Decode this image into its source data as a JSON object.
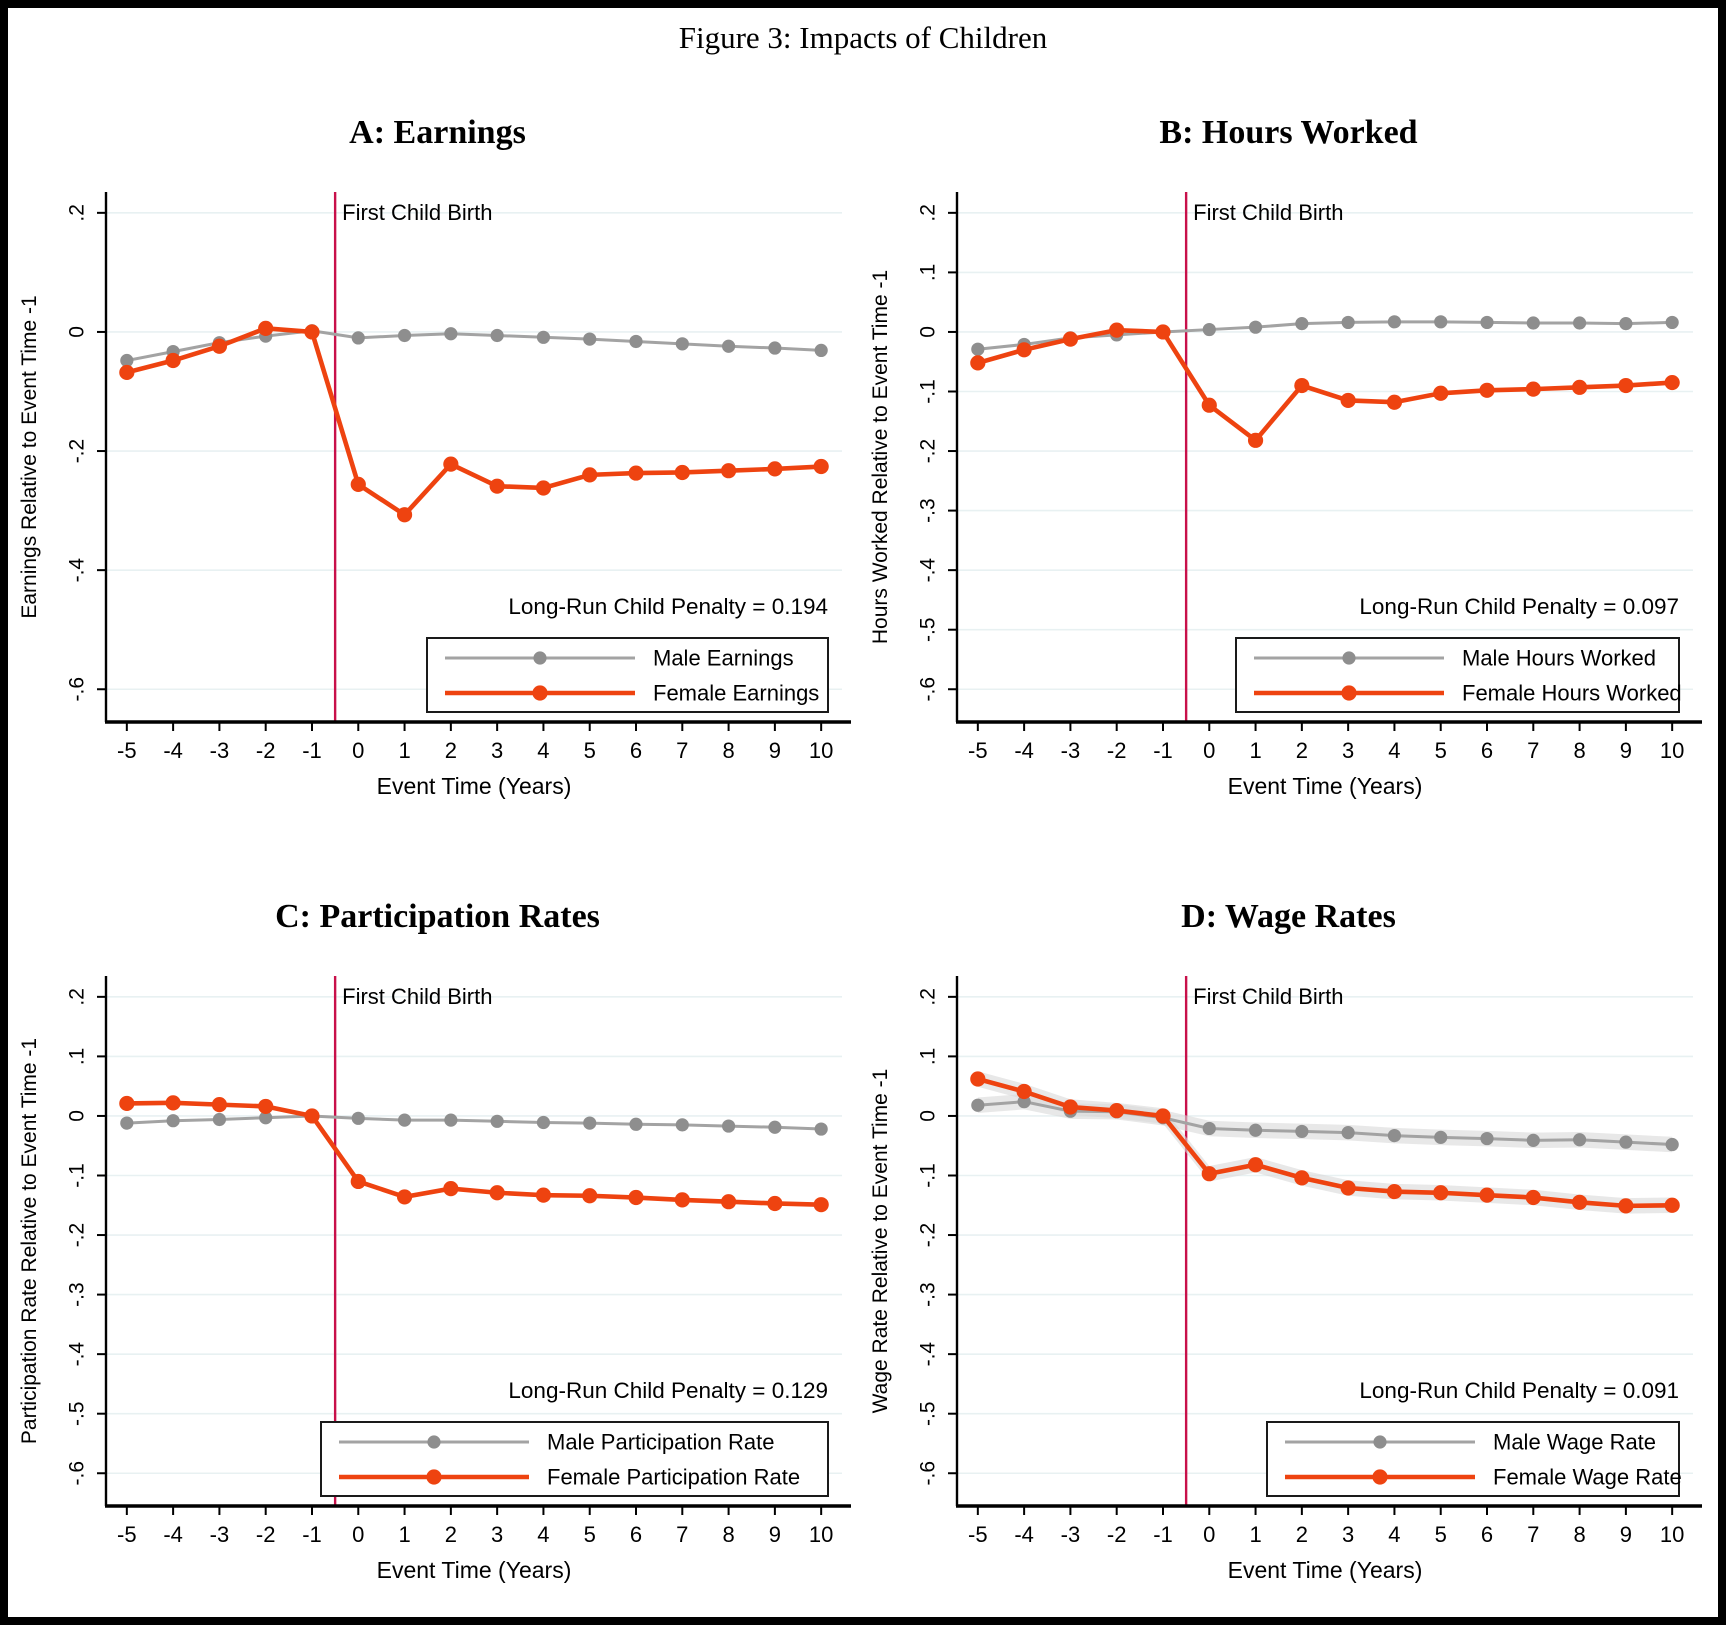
{
  "figure": {
    "title": "Figure 3: Impacts of Children",
    "event_line_label": "First Child Birth",
    "xlabel": "Event Time (Years)"
  },
  "colors": {
    "male_line": "#A3A3A3",
    "male_marker": "#8E8E8E",
    "female": "#EE4310",
    "event_line": "#C8104A",
    "grid": "#E8F1F2",
    "axis": "#000000",
    "ci_band": "#D9D9D9",
    "legend_border": "#1a1a1a"
  },
  "chart_data": [
    {
      "type": "line",
      "title": "A: Earnings",
      "ylabel": "Earnings Relative to Event Time -1",
      "xlabel": "Event Time (Years)",
      "x": [
        -5,
        -4,
        -3,
        -2,
        -1,
        0,
        1,
        2,
        3,
        4,
        5,
        6,
        7,
        8,
        9,
        10
      ],
      "xtick_labels": [
        "-5",
        "-4",
        "-3",
        "-2",
        "-1",
        "0",
        "1",
        "2",
        "3",
        "4",
        "5",
        "6",
        "7",
        "8",
        "9",
        "10"
      ],
      "series": [
        {
          "name": "Male Earnings",
          "role": "male",
          "values": [
            -0.048,
            -0.033,
            -0.018,
            -0.007,
            0.002,
            -0.01,
            -0.006,
            -0.003,
            -0.006,
            -0.009,
            -0.012,
            -0.016,
            -0.02,
            -0.024,
            -0.027,
            -0.031
          ]
        },
        {
          "name": "Female Earnings",
          "role": "female",
          "values": [
            -0.068,
            -0.048,
            -0.024,
            0.006,
            0.0,
            -0.256,
            -0.307,
            -0.222,
            -0.259,
            -0.262,
            -0.24,
            -0.237,
            -0.236,
            -0.233,
            -0.23,
            -0.226
          ]
        }
      ],
      "yticks": [
        0.2,
        0,
        -0.2,
        -0.4,
        -0.6
      ],
      "ytick_labels": [
        ".2",
        "0",
        "-.2",
        "-.4",
        "-.6"
      ],
      "ylim": [
        -0.655,
        0.235
      ],
      "event_line_x": -0.5,
      "annotation": "Long-Run Child Penalty = 0.194",
      "ci": false,
      "ci_halfwidth": 0
    },
    {
      "type": "line",
      "title": "B: Hours Worked",
      "ylabel": "Hours Worked Relative to Event Time -1",
      "xlabel": "Event Time (Years)",
      "x": [
        -5,
        -4,
        -3,
        -2,
        -1,
        0,
        1,
        2,
        3,
        4,
        5,
        6,
        7,
        8,
        9,
        10
      ],
      "xtick_labels": [
        "-5",
        "-4",
        "-3",
        "-2",
        "-1",
        "0",
        "1",
        "2",
        "3",
        "4",
        "5",
        "6",
        "7",
        "8",
        "9",
        "10"
      ],
      "series": [
        {
          "name": "Male Hours Worked",
          "role": "male",
          "values": [
            -0.029,
            -0.021,
            -0.01,
            -0.005,
            0.0,
            0.004,
            0.008,
            0.014,
            0.016,
            0.017,
            0.017,
            0.016,
            0.015,
            0.015,
            0.014,
            0.016
          ]
        },
        {
          "name": "Female Hours Worked",
          "role": "female",
          "values": [
            -0.052,
            -0.03,
            -0.012,
            0.003,
            0.0,
            -0.123,
            -0.182,
            -0.09,
            -0.115,
            -0.118,
            -0.103,
            -0.098,
            -0.096,
            -0.093,
            -0.09,
            -0.085
          ]
        }
      ],
      "yticks": [
        0.2,
        0.1,
        0,
        -0.1,
        -0.2,
        -0.3,
        -0.4,
        -0.5,
        -0.6
      ],
      "ytick_labels": [
        ".2",
        ".1",
        "0",
        "-.1",
        "-.2",
        "-.3",
        "-.4",
        "-.5",
        "-.6"
      ],
      "ylim": [
        -0.655,
        0.235
      ],
      "event_line_x": -0.5,
      "annotation": "Long-Run Child Penalty = 0.097",
      "ci": false,
      "ci_halfwidth": 0
    },
    {
      "type": "line",
      "title": "C: Participation Rates",
      "ylabel": "Participation Rate Relative to Event Time -1",
      "xlabel": "Event Time (Years)",
      "x": [
        -5,
        -4,
        -3,
        -2,
        -1,
        0,
        1,
        2,
        3,
        4,
        5,
        6,
        7,
        8,
        9,
        10
      ],
      "xtick_labels": [
        "-5",
        "-4",
        "-3",
        "-2",
        "-1",
        "0",
        "1",
        "2",
        "3",
        "4",
        "5",
        "6",
        "7",
        "8",
        "9",
        "10"
      ],
      "series": [
        {
          "name": "Male Participation Rate",
          "role": "male",
          "values": [
            -0.012,
            -0.008,
            -0.006,
            -0.003,
            0.0,
            -0.004,
            -0.007,
            -0.007,
            -0.009,
            -0.011,
            -0.012,
            -0.014,
            -0.015,
            -0.017,
            -0.019,
            -0.022
          ]
        },
        {
          "name": "Female Participation Rate",
          "role": "female",
          "values": [
            0.021,
            0.022,
            0.019,
            0.016,
            0.0,
            -0.11,
            -0.136,
            -0.122,
            -0.129,
            -0.133,
            -0.134,
            -0.137,
            -0.141,
            -0.144,
            -0.147,
            -0.149
          ]
        }
      ],
      "yticks": [
        0.2,
        0.1,
        0,
        -0.1,
        -0.2,
        -0.3,
        -0.4,
        -0.5,
        -0.6
      ],
      "ytick_labels": [
        ".2",
        ".1",
        "0",
        "-.1",
        "-.2",
        "-.3",
        "-.4",
        "-.5",
        "-.6"
      ],
      "ylim": [
        -0.655,
        0.235
      ],
      "event_line_x": -0.5,
      "annotation": "Long-Run Child Penalty = 0.129",
      "ci": false,
      "ci_halfwidth": 0
    },
    {
      "type": "line",
      "title": "D: Wage Rates",
      "ylabel": "Wage Rate Relative to Event Time -1",
      "xlabel": "Event Time (Years)",
      "x": [
        -5,
        -4,
        -3,
        -2,
        -1,
        0,
        1,
        2,
        3,
        4,
        5,
        6,
        7,
        8,
        9,
        10
      ],
      "xtick_labels": [
        "-5",
        "-4",
        "-3",
        "-2",
        "-1",
        "0",
        "1",
        "2",
        "3",
        "4",
        "5",
        "6",
        "7",
        "8",
        "9",
        "10"
      ],
      "series": [
        {
          "name": "Male Wage Rate",
          "role": "male",
          "values": [
            0.018,
            0.024,
            0.008,
            0.007,
            -0.003,
            -0.021,
            -0.024,
            -0.026,
            -0.028,
            -0.033,
            -0.036,
            -0.038,
            -0.041,
            -0.04,
            -0.044,
            -0.048
          ]
        },
        {
          "name": "Female Wage Rate",
          "role": "female",
          "values": [
            0.062,
            0.041,
            0.015,
            0.009,
            0.0,
            -0.097,
            -0.082,
            -0.104,
            -0.121,
            -0.127,
            -0.129,
            -0.133,
            -0.137,
            -0.145,
            -0.151,
            -0.15
          ]
        }
      ],
      "yticks": [
        0.2,
        0.1,
        0,
        -0.1,
        -0.2,
        -0.3,
        -0.4,
        -0.5,
        -0.6
      ],
      "ytick_labels": [
        ".2",
        ".1",
        "0",
        "-.1",
        "-.2",
        "-.3",
        "-.4",
        "-.5",
        "-.6"
      ],
      "ylim": [
        -0.655,
        0.235
      ],
      "event_line_x": -0.5,
      "annotation": "Long-Run Child Penalty = 0.091",
      "ci": true,
      "ci_halfwidth": 0.013
    }
  ]
}
